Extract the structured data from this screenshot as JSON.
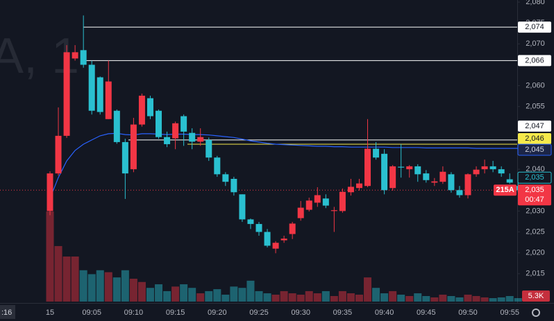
{
  "chart_data": {
    "type": "candlestick",
    "watermark": "A, 1",
    "edge_label": ":16",
    "up_color": "#f23645",
    "down_color": "#2ac0d0",
    "grid": false,
    "categories": [
      "15",
      null,
      null,
      null,
      null,
      "09:05",
      null,
      null,
      null,
      null,
      "09:10",
      null,
      null,
      null,
      null,
      "09:15",
      null,
      null,
      null,
      null,
      "09:20",
      null,
      null,
      null,
      null,
      "09:25",
      null,
      null,
      null,
      null,
      "09:30",
      null,
      null,
      null,
      null,
      "09:35",
      null,
      null,
      null,
      null,
      "09:40",
      null,
      null,
      null,
      null,
      "09:45",
      null,
      null,
      null,
      null,
      "09:50",
      null,
      null,
      null,
      null,
      "09:55",
      null
    ],
    "open": [
      2030,
      2039,
      2048,
      2066.5,
      2068.5,
      2065,
      2062,
      2052,
      2054,
      2046.5,
      2040,
      2050.7,
      2057,
      2054,
      2047.7,
      2047.4,
      2052.7,
      2048.7,
      2046.6,
      2047,
      2042.8,
      2038.8,
      2037.7,
      2034,
      2028,
      2026.9,
      2025,
      2021,
      2023,
      2024.5,
      2028.3,
      2030.3,
      2032,
      2033,
      2030,
      2030,
      2034.5,
      2035.5,
      2036,
      2044.9,
      2043.7,
      2035.5,
      2040.6,
      2040,
      2040.7,
      2039,
      2036.8,
      2037,
      2038.8,
      2035,
      2033.8,
      2038.8,
      2040,
      2040.7,
      2040,
      2037.6,
      2036
    ],
    "high": [
      2039.5,
      2054.8,
      2069.7,
      2069.7,
      2076.8,
      2066,
      2062.2,
      2066,
      2054.3,
      2047.3,
      2052.3,
      2058.1,
      2057.6,
      2054.3,
      2049,
      2051.4,
      2053.1,
      2049.8,
      2049.8,
      2047.6,
      2043.2,
      2039.3,
      2038.2,
      2034,
      2028.2,
      2027.4,
      2025.7,
      2022.8,
      2024.1,
      2027.4,
      2032.4,
      2033.2,
      2035.7,
      2034,
      2031,
      2035.4,
      2037.7,
      2037.7,
      2052,
      2046.5,
      2044.8,
      2041,
      2046,
      2041,
      2041.2,
      2039.8,
      2037.9,
      2040.7,
      2039.3,
      2036,
      2039,
      2040.7,
      2042.3,
      2042,
      2040.7,
      2039,
      2037
    ],
    "low": [
      2029,
      2038.5,
      2047.5,
      2066,
      2064.3,
      2053.1,
      2053.1,
      2052,
      2046.1,
      2032.9,
      2039.3,
      2050.2,
      2052,
      2047.3,
      2045.3,
      2044.8,
      2045.6,
      2044.8,
      2045.6,
      2042,
      2038.2,
      2036,
      2033.7,
      2027.4,
      2025.7,
      2024.1,
      2021.3,
      2019.9,
      2022.4,
      2023.3,
      2027.7,
      2029.9,
      2031,
      2030.7,
      2025,
      2029.6,
      2033.7,
      2034.9,
      2035.7,
      2042.3,
      2034,
      2034.9,
      2038,
      2038,
      2037,
      2036.8,
      2036,
      2036.5,
      2034.4,
      2033.2,
      2033,
      2038.2,
      2039,
      2039.3,
      2038.2,
      2036.5,
      2034.5
    ],
    "close": [
      2039,
      2048,
      2068,
      2068,
      2065,
      2054,
      2053.7,
      2061,
      2046.5,
      2039,
      2050.7,
      2057.6,
      2052.7,
      2047.7,
      2046,
      2051,
      2049,
      2046.6,
      2047.7,
      2042.8,
      2038.8,
      2037,
      2034.5,
      2028,
      2026.9,
      2025,
      2021.7,
      2022.4,
      2023.4,
      2027,
      2030.8,
      2032.5,
      2033.8,
      2031.3,
      2030.2,
      2034.6,
      2035.8,
      2036.6,
      2044.9,
      2042.8,
      2035,
      2040.7,
      2040.4,
      2040.7,
      2038.8,
      2037.4,
      2037.1,
      2039.4,
      2035,
      2033.8,
      2038.8,
      2039.9,
      2040.7,
      2040,
      2039,
      2036.8,
      2035
    ],
    "volume": {
      "values": [
        138000,
        85000,
        69000,
        69000,
        48000,
        42000,
        48000,
        45000,
        37000,
        48000,
        35000,
        30000,
        21000,
        26500,
        16000,
        23000,
        26500,
        21000,
        12700,
        16000,
        19000,
        10600,
        23000,
        21000,
        32000,
        16000,
        12700,
        10600,
        16000,
        12700,
        10600,
        16000,
        12700,
        16000,
        8500,
        16000,
        12700,
        10600,
        37000,
        21000,
        12700,
        16000,
        10600,
        8500,
        12700,
        8500,
        6400,
        10600,
        8500,
        6400,
        10600,
        8500,
        6400,
        5300,
        6400,
        8500,
        5300
      ],
      "last_label": "5.3K"
    },
    "ma": {
      "color": "#2962ff",
      "last_label": "2,045",
      "values": [
        2033,
        2038,
        2042,
        2044.5,
        2046,
        2047,
        2048,
        2048.5,
        2048.6,
        2048.3,
        2048.2,
        2048.5,
        2048.5,
        2048.4,
        2048.3,
        2048.4,
        2048.4,
        2048.3,
        2048.3,
        2048.2,
        2048,
        2047.8,
        2047.6,
        2047.2,
        2046.8,
        2046.5,
        2046.2,
        2046,
        2045.9,
        2045.8,
        2045.7,
        2045.6,
        2045.5,
        2045.5,
        2045.4,
        2045.4,
        2045.3,
        2045.3,
        2045.3,
        2045.3,
        2045.3,
        2045.2,
        2045.2,
        2045.2,
        2045.2,
        2045.1,
        2045.1,
        2045.1,
        2045.1,
        2045.1,
        2045.1,
        2045,
        2045,
        2045,
        2045,
        2045,
        2045
      ]
    },
    "price_lines": [
      {
        "value": 2074,
        "label": "2,074",
        "color": "#ffffff"
      },
      {
        "value": 2066,
        "label": "2,066",
        "color": "#ffffff"
      },
      {
        "value": 2047,
        "label": "2,047",
        "color": "#ffffff"
      },
      {
        "value": 2046,
        "label": "2,046",
        "color": "#f5e94a"
      }
    ],
    "indicator_label": {
      "value": 2035,
      "label": "2,035"
    },
    "last_price": {
      "value": 2035,
      "label": "2,035",
      "countdown": "00:47",
      "symbol": "215A"
    },
    "ylim": [
      2008,
      2080.5
    ],
    "yticks": [
      {
        "value": 2080,
        "label": "2,080"
      },
      {
        "value": 2075,
        "label": "2,075"
      },
      {
        "value": 2070,
        "label": "2,070"
      },
      {
        "value": 2060,
        "label": "2,060"
      },
      {
        "value": 2055,
        "label": "2,055"
      },
      {
        "value": 2040,
        "label": "2,040"
      },
      {
        "value": 2030,
        "label": "2,030"
      },
      {
        "value": 2025,
        "label": "2,025"
      },
      {
        "value": 2020,
        "label": "2,020"
      },
      {
        "value": 2015,
        "label": "2,015"
      }
    ]
  }
}
